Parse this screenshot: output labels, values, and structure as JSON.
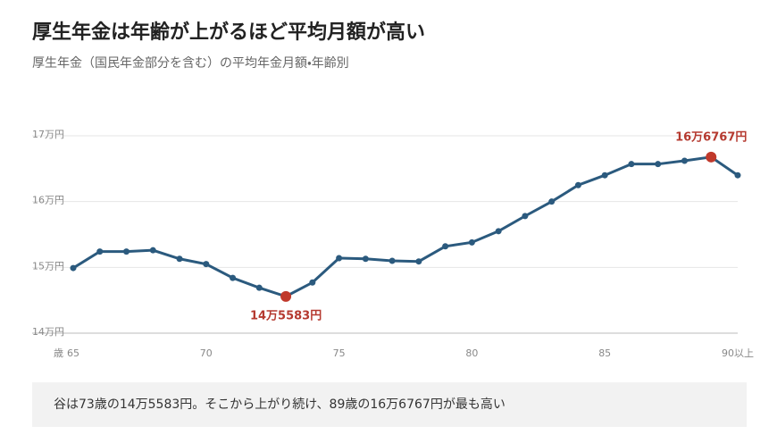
{
  "chart_data": {
    "type": "line",
    "title": "厚生年金は年齢が上がるほど平均月額が高い",
    "subtitle": "厚生年金（国民年金部分を含む）の平均年金月額・年齢別",
    "x_label": "歳",
    "annotation": "谷は73歳の14万5583円。そこから上がり続け、89歳の16万6767円が最も高い",
    "categories": [
      "65",
      null,
      null,
      null,
      null,
      "70",
      null,
      null,
      null,
      null,
      "75",
      null,
      null,
      null,
      null,
      "80",
      null,
      null,
      null,
      null,
      "85",
      null,
      null,
      null,
      null,
      "90以上"
    ],
    "series": [
      {
        "name": "平均年金月額",
        "color": "#2b5a7e",
        "values": [
          149900,
          152400,
          152400,
          152600,
          151300,
          150500,
          148400,
          146900,
          145583,
          147700,
          151400,
          151300,
          151000,
          150900,
          153200,
          153800,
          155500,
          157800,
          160000,
          162500,
          164000,
          165700,
          165700,
          166200,
          166767,
          164000
        ],
        "value_labels": [
          null,
          null,
          null,
          null,
          null,
          null,
          null,
          null,
          "14万5583円",
          null,
          null,
          null,
          null,
          null,
          null,
          null,
          null,
          null,
          null,
          null,
          null,
          null,
          null,
          null,
          "16万6767円",
          null
        ]
      }
    ],
    "highlight_color": "#c0392b",
    "ylim": [
      140000,
      170000
    ],
    "yticks": [
      {
        "value": 140000,
        "label": "14万円"
      },
      {
        "value": 150000,
        "label": "15万円"
      },
      {
        "value": 160000,
        "label": "16万円"
      },
      {
        "value": 170000,
        "label": "17万円"
      }
    ],
    "grid": true
  }
}
